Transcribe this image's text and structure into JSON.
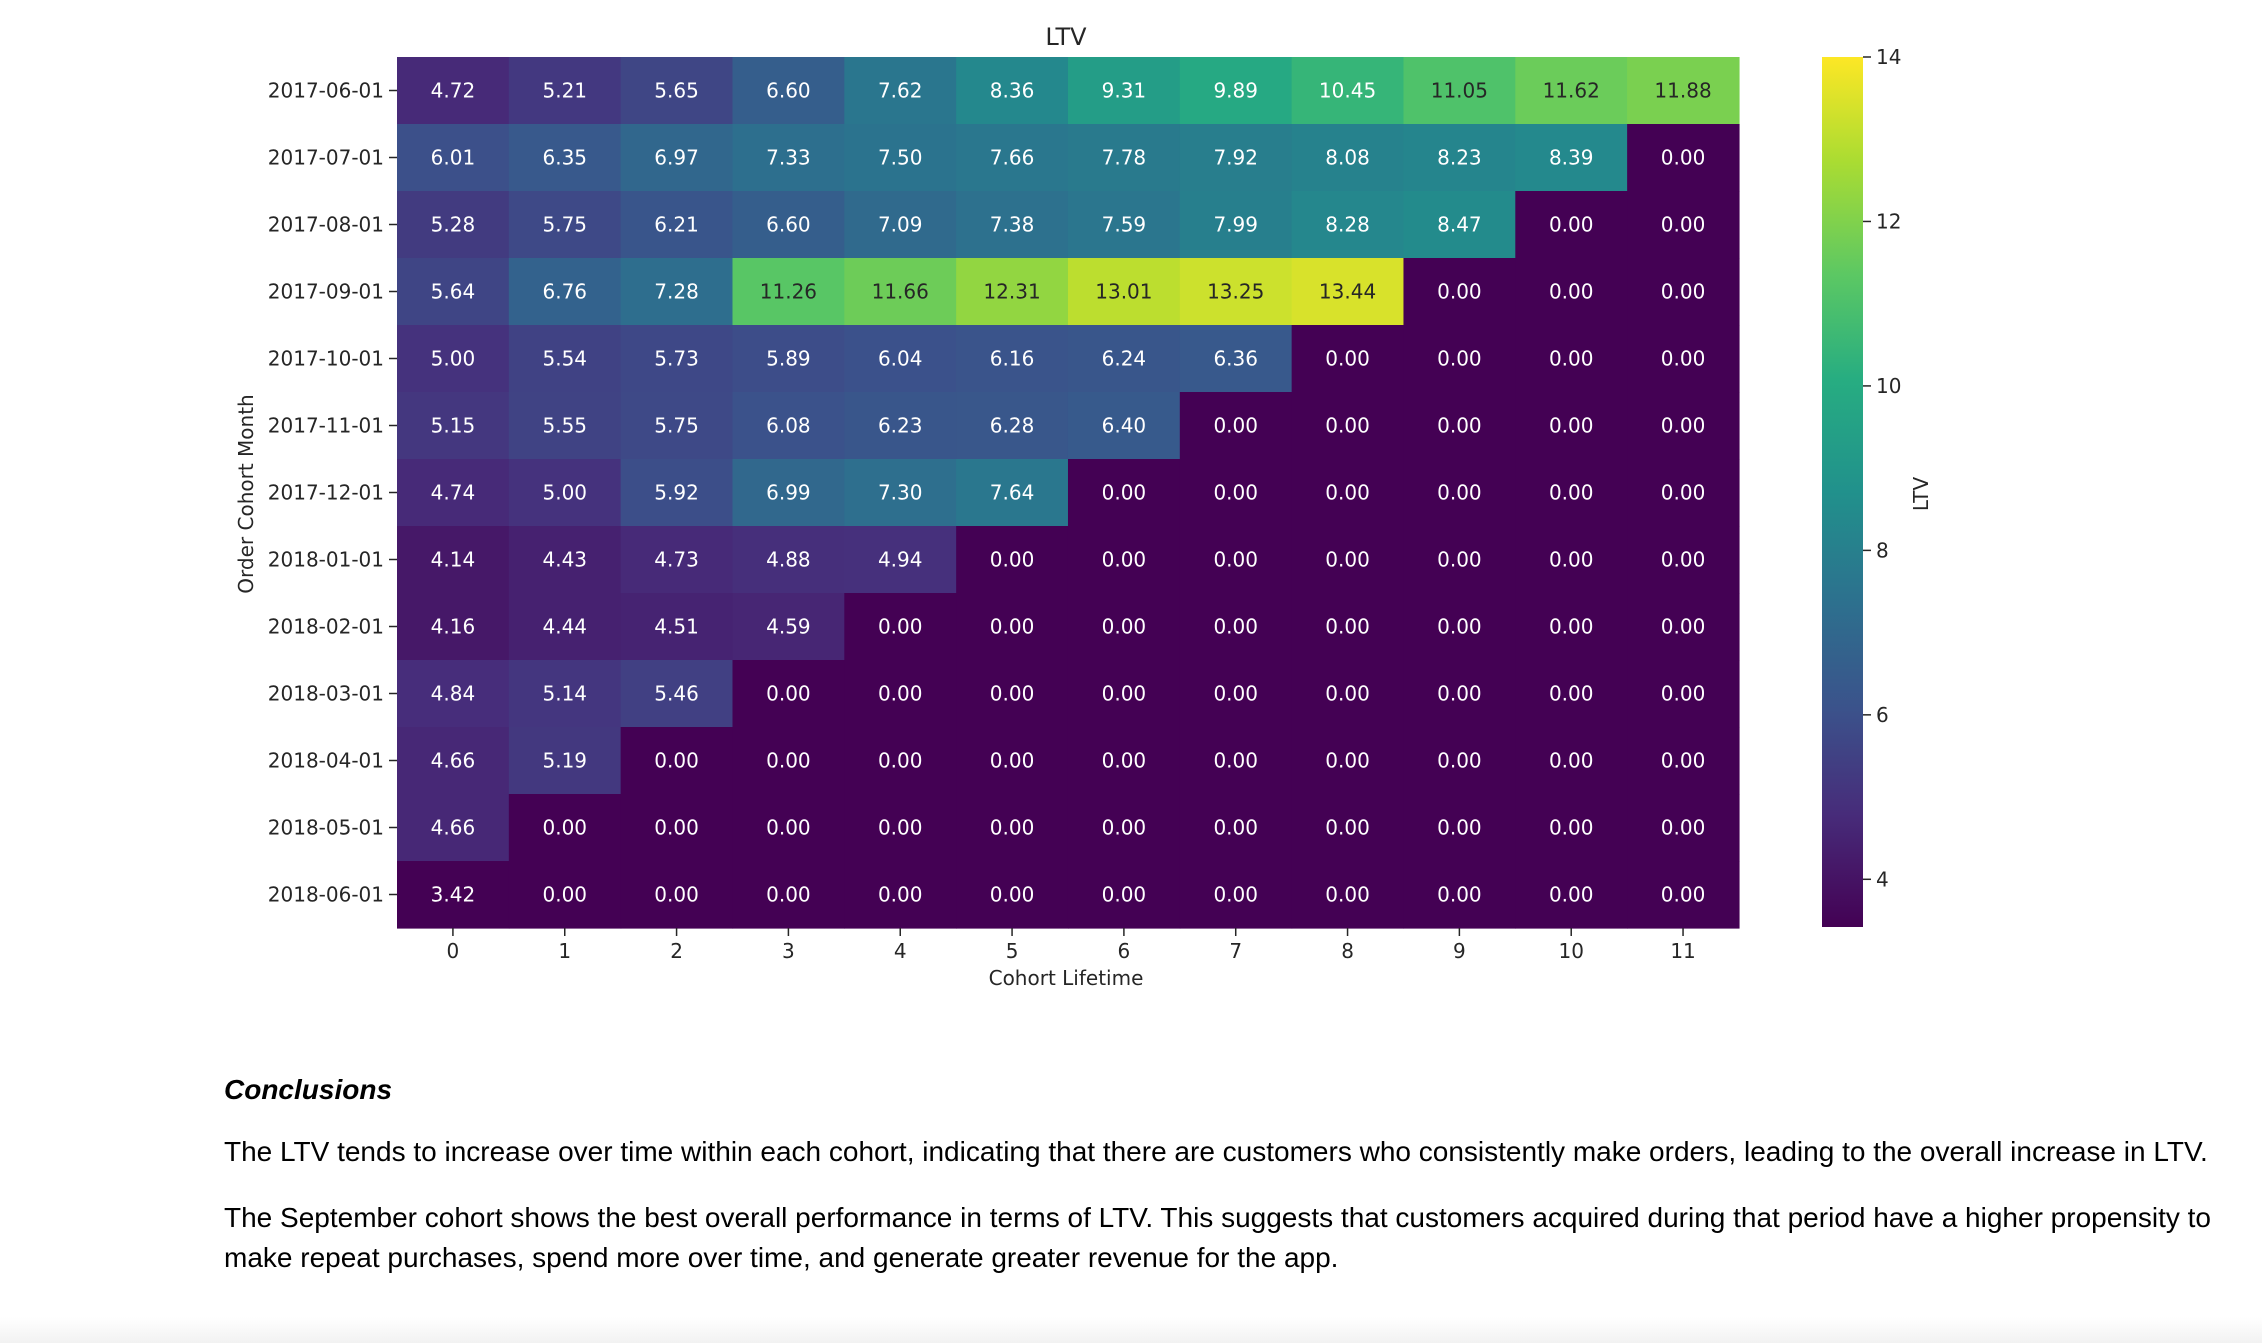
{
  "chart_data": {
    "type": "heatmap",
    "title": "LTV",
    "xlabel": "Cohort Lifetime",
    "ylabel": "Order Cohort Month",
    "colorbar_label": "LTV",
    "colormap": "viridis",
    "color_range": [
      3.42,
      14
    ],
    "colorbar_ticks": [
      "4",
      "6",
      "8",
      "10",
      "12",
      "14"
    ],
    "x": [
      "0",
      "1",
      "2",
      "3",
      "4",
      "5",
      "6",
      "7",
      "8",
      "9",
      "10",
      "11"
    ],
    "y": [
      "2017-06-01",
      "2017-07-01",
      "2017-08-01",
      "2017-09-01",
      "2017-10-01",
      "2017-11-01",
      "2017-12-01",
      "2018-01-01",
      "2018-02-01",
      "2018-03-01",
      "2018-04-01",
      "2018-05-01",
      "2018-06-01"
    ],
    "values": [
      [
        "4.72",
        "5.21",
        "5.65",
        "6.60",
        "7.62",
        "8.36",
        "9.31",
        "9.89",
        "10.45",
        "11.05",
        "11.62",
        "11.88"
      ],
      [
        "6.01",
        "6.35",
        "6.97",
        "7.33",
        "7.50",
        "7.66",
        "7.78",
        "7.92",
        "8.08",
        "8.23",
        "8.39",
        "0.00"
      ],
      [
        "5.28",
        "5.75",
        "6.21",
        "6.60",
        "7.09",
        "7.38",
        "7.59",
        "7.99",
        "8.28",
        "8.47",
        "0.00",
        "0.00"
      ],
      [
        "5.64",
        "6.76",
        "7.28",
        "11.26",
        "11.66",
        "12.31",
        "13.01",
        "13.25",
        "13.44",
        "0.00",
        "0.00",
        "0.00"
      ],
      [
        "5.00",
        "5.54",
        "5.73",
        "5.89",
        "6.04",
        "6.16",
        "6.24",
        "6.36",
        "0.00",
        "0.00",
        "0.00",
        "0.00"
      ],
      [
        "5.15",
        "5.55",
        "5.75",
        "6.08",
        "6.23",
        "6.28",
        "6.40",
        "0.00",
        "0.00",
        "0.00",
        "0.00",
        "0.00"
      ],
      [
        "4.74",
        "5.00",
        "5.92",
        "6.99",
        "7.30",
        "7.64",
        "0.00",
        "0.00",
        "0.00",
        "0.00",
        "0.00",
        "0.00"
      ],
      [
        "4.14",
        "4.43",
        "4.73",
        "4.88",
        "4.94",
        "0.00",
        "0.00",
        "0.00",
        "0.00",
        "0.00",
        "0.00",
        "0.00"
      ],
      [
        "4.16",
        "4.44",
        "4.51",
        "4.59",
        "0.00",
        "0.00",
        "0.00",
        "0.00",
        "0.00",
        "0.00",
        "0.00",
        "0.00"
      ],
      [
        "4.84",
        "5.14",
        "5.46",
        "0.00",
        "0.00",
        "0.00",
        "0.00",
        "0.00",
        "0.00",
        "0.00",
        "0.00",
        "0.00"
      ],
      [
        "4.66",
        "5.19",
        "0.00",
        "0.00",
        "0.00",
        "0.00",
        "0.00",
        "0.00",
        "0.00",
        "0.00",
        "0.00",
        "0.00"
      ],
      [
        "4.66",
        "0.00",
        "0.00",
        "0.00",
        "0.00",
        "0.00",
        "0.00",
        "0.00",
        "0.00",
        "0.00",
        "0.00",
        "0.00"
      ],
      [
        "3.42",
        "0.00",
        "0.00",
        "0.00",
        "0.00",
        "0.00",
        "0.00",
        "0.00",
        "0.00",
        "0.00",
        "0.00",
        "0.00"
      ]
    ]
  },
  "conclusions": {
    "heading": "Conclusions",
    "paragraph_1": "The LTV tends to increase over time within each cohort, indicating that there are customers who consistently make orders, leading to the overall increase in LTV.",
    "paragraph_2": "The September cohort shows the best overall performance in terms of LTV. This suggests that customers acquired during that period have a higher propensity to make repeat purchases, spend more over time, and generate greater revenue for the app."
  }
}
